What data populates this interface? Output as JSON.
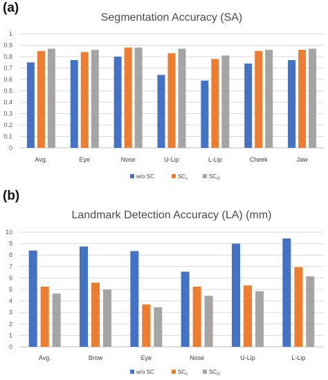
{
  "panels": {
    "a": {
      "label": "(a)"
    },
    "b": {
      "label": "(b)"
    }
  },
  "colors": {
    "w/o SC": "#4472c4",
    "SCc": "#ed7d31",
    "SCcf": "#a5a5a5",
    "grid": "#d9d9d9"
  },
  "chart_data": [
    {
      "type": "bar",
      "title": "Segmentation Accuracy (SA)",
      "categories": [
        "Avg.",
        "Eye",
        "Nose",
        "U-Lip",
        "L-Lip",
        "Cheek",
        "Jaw"
      ],
      "series": [
        {
          "name": "w/o SC",
          "label_main": "w/o SC",
          "label_sub": "",
          "values": [
            0.75,
            0.77,
            0.8,
            0.64,
            0.59,
            0.74,
            0.77
          ]
        },
        {
          "name": "SCc",
          "label_main": "SC",
          "label_sub": "c",
          "values": [
            0.85,
            0.84,
            0.88,
            0.83,
            0.78,
            0.85,
            0.86
          ]
        },
        {
          "name": "SCcf",
          "label_main": "SC",
          "label_sub": "cf",
          "values": [
            0.87,
            0.86,
            0.88,
            0.87,
            0.81,
            0.86,
            0.87
          ]
        }
      ],
      "yticks": [
        "0",
        "0.1",
        "0.2",
        "0.3",
        "0.4",
        "0.5",
        "0.6",
        "0.7",
        "0.8",
        "0.9",
        "1"
      ],
      "ylim": [
        0,
        1
      ],
      "grid": true,
      "legend": "bottom"
    },
    {
      "type": "bar",
      "title": "Landmark Detection Accuracy (LA) (mm)",
      "categories": [
        "Avg.",
        "Brow",
        "Eye",
        "Nose",
        "U-Lip",
        "L-Lip"
      ],
      "series": [
        {
          "name": "w/o SC",
          "label_main": "w/o SC",
          "label_sub": "",
          "values": [
            8.4,
            8.75,
            8.35,
            6.55,
            9.0,
            9.45
          ]
        },
        {
          "name": "SCc",
          "label_main": "SC",
          "label_sub": "c",
          "values": [
            5.25,
            5.6,
            3.7,
            5.25,
            5.35,
            6.95
          ]
        },
        {
          "name": "SCcf",
          "label_main": "SC",
          "label_sub": "cf",
          "values": [
            4.65,
            5.0,
            3.45,
            4.45,
            4.85,
            6.15
          ]
        }
      ],
      "yticks": [
        "0",
        "1",
        "2",
        "3",
        "4",
        "5",
        "6",
        "7",
        "8",
        "9",
        "10"
      ],
      "ylim": [
        0,
        10
      ],
      "grid": true,
      "legend": "bottom"
    }
  ]
}
